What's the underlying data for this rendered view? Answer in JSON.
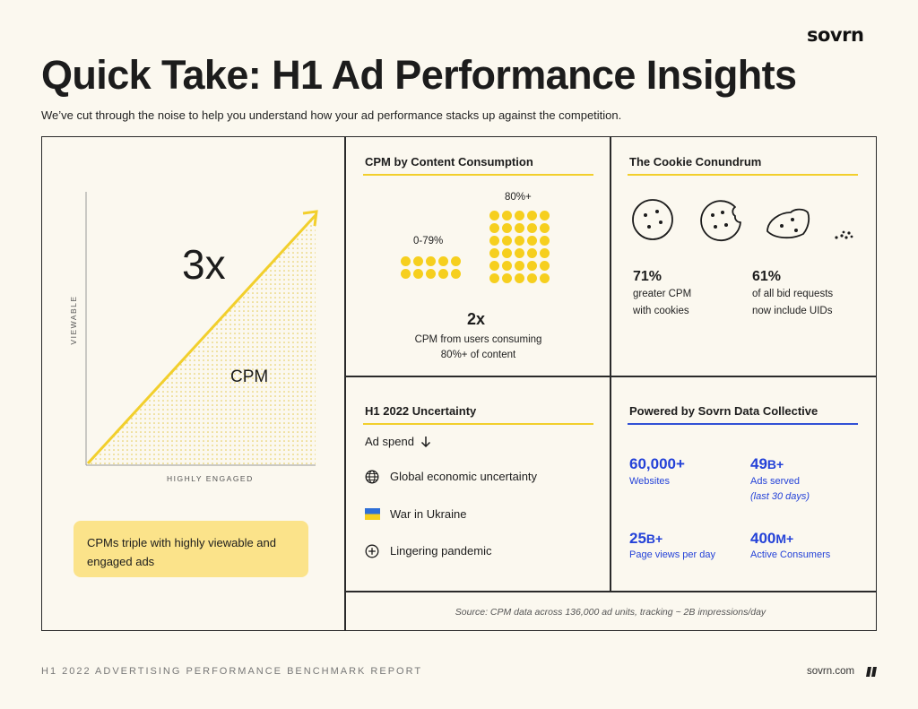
{
  "header": {
    "logo": "sovrn",
    "title": "Quick Take: H1 Ad Performance Insights",
    "subtitle": "We’ve cut through the noise to help you understand how your ad performance stacks up against the competition."
  },
  "chart_panel": {
    "multiplier": "3x",
    "area_label": "CPM",
    "ylabel": "VIEWABLE",
    "xlabel": "HIGHLY ENGAGED",
    "callout": "CPMs triple with highly viewable and engaged ads"
  },
  "cpm_section": {
    "title": "CPM by Content Consumption",
    "group_low_label": "0-79%",
    "group_high_label": "80%+",
    "result_value": "2x",
    "result_line1": "CPM from users consuming",
    "result_line2": "80%+ of content"
  },
  "cookie_section": {
    "title": "The Cookie Conundrum",
    "stat1_value": "71%",
    "stat1_line1": "greater CPM",
    "stat1_line2": "with cookies",
    "stat2_value": "61%",
    "stat2_line1": "of all bid requests",
    "stat2_line2": "now include UIDs"
  },
  "uncertainty_section": {
    "title": "H1 2022 Uncertainty",
    "ad_spend": "Ad spend",
    "items": [
      {
        "label": "Global economic uncertainty",
        "icon": "globe-icon"
      },
      {
        "label": "War in Ukraine",
        "icon": "ukraine-flag-icon"
      },
      {
        "label": "Lingering pandemic",
        "icon": "plus-circle-icon"
      }
    ]
  },
  "collective_section": {
    "title": "Powered by Sovrn Data Collective",
    "stats": [
      {
        "value": "60,000+",
        "suffix": "",
        "label": "Websites",
        "note": ""
      },
      {
        "value": "49",
        "suffix": "B+",
        "label": "Ads served",
        "note": "(last 30 days)"
      },
      {
        "value": "25",
        "suffix": "B+",
        "label": "Page views per day",
        "note": ""
      },
      {
        "value": "400",
        "suffix": "M+",
        "label": "Active Consumers",
        "note": ""
      }
    ]
  },
  "source": "Source: CPM data across 136,000 ad units, tracking ~ 2B impressions/day",
  "footer": {
    "report": "H1 2022 ADVERTISING PERFORMANCE BENCHMARK REPORT",
    "site": "sovrn.com"
  },
  "colors": {
    "background": "#fbf8ef",
    "yellow": "#f6cf1e",
    "blue": "#2442d8",
    "callout": "#fbe38a"
  }
}
